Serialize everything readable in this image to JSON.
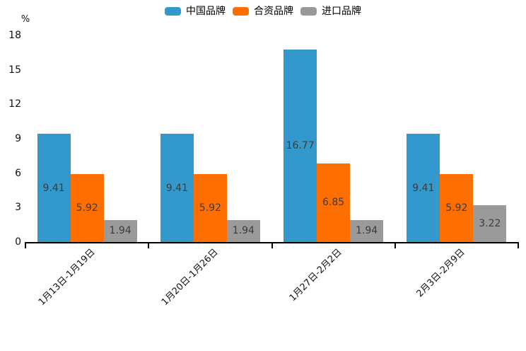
{
  "chart_data": {
    "type": "bar",
    "title": "",
    "unit": "%",
    "categories": [
      "1月13日-1月19日",
      "1月20日-1月26日",
      "1月27日-2月2日",
      "2月3日-2月9日"
    ],
    "series": [
      {
        "name": "中国品牌",
        "color": "#3398cc",
        "values": [
          9.41,
          9.41,
          16.77,
          9.41
        ]
      },
      {
        "name": "合资品牌",
        "color": "#ff6e00",
        "values": [
          5.92,
          5.92,
          6.85,
          5.92
        ]
      },
      {
        "name": "进口品牌",
        "color": "#9a9a9a",
        "values": [
          1.94,
          1.94,
          1.94,
          3.22
        ]
      }
    ],
    "value_labels": [
      [
        "9.41",
        "5.92",
        "1.94"
      ],
      [
        "9.41",
        "5.92",
        "1.94"
      ],
      [
        "16.77",
        "6.85",
        "1.94"
      ],
      [
        "9.41",
        "5.92",
        "3.22"
      ]
    ],
    "yticks": [
      0,
      3,
      6,
      9,
      12,
      15,
      18
    ],
    "ylim": [
      0,
      18
    ],
    "xlabel": "",
    "ylabel": "%",
    "legend_position": "top",
    "grid": false
  }
}
